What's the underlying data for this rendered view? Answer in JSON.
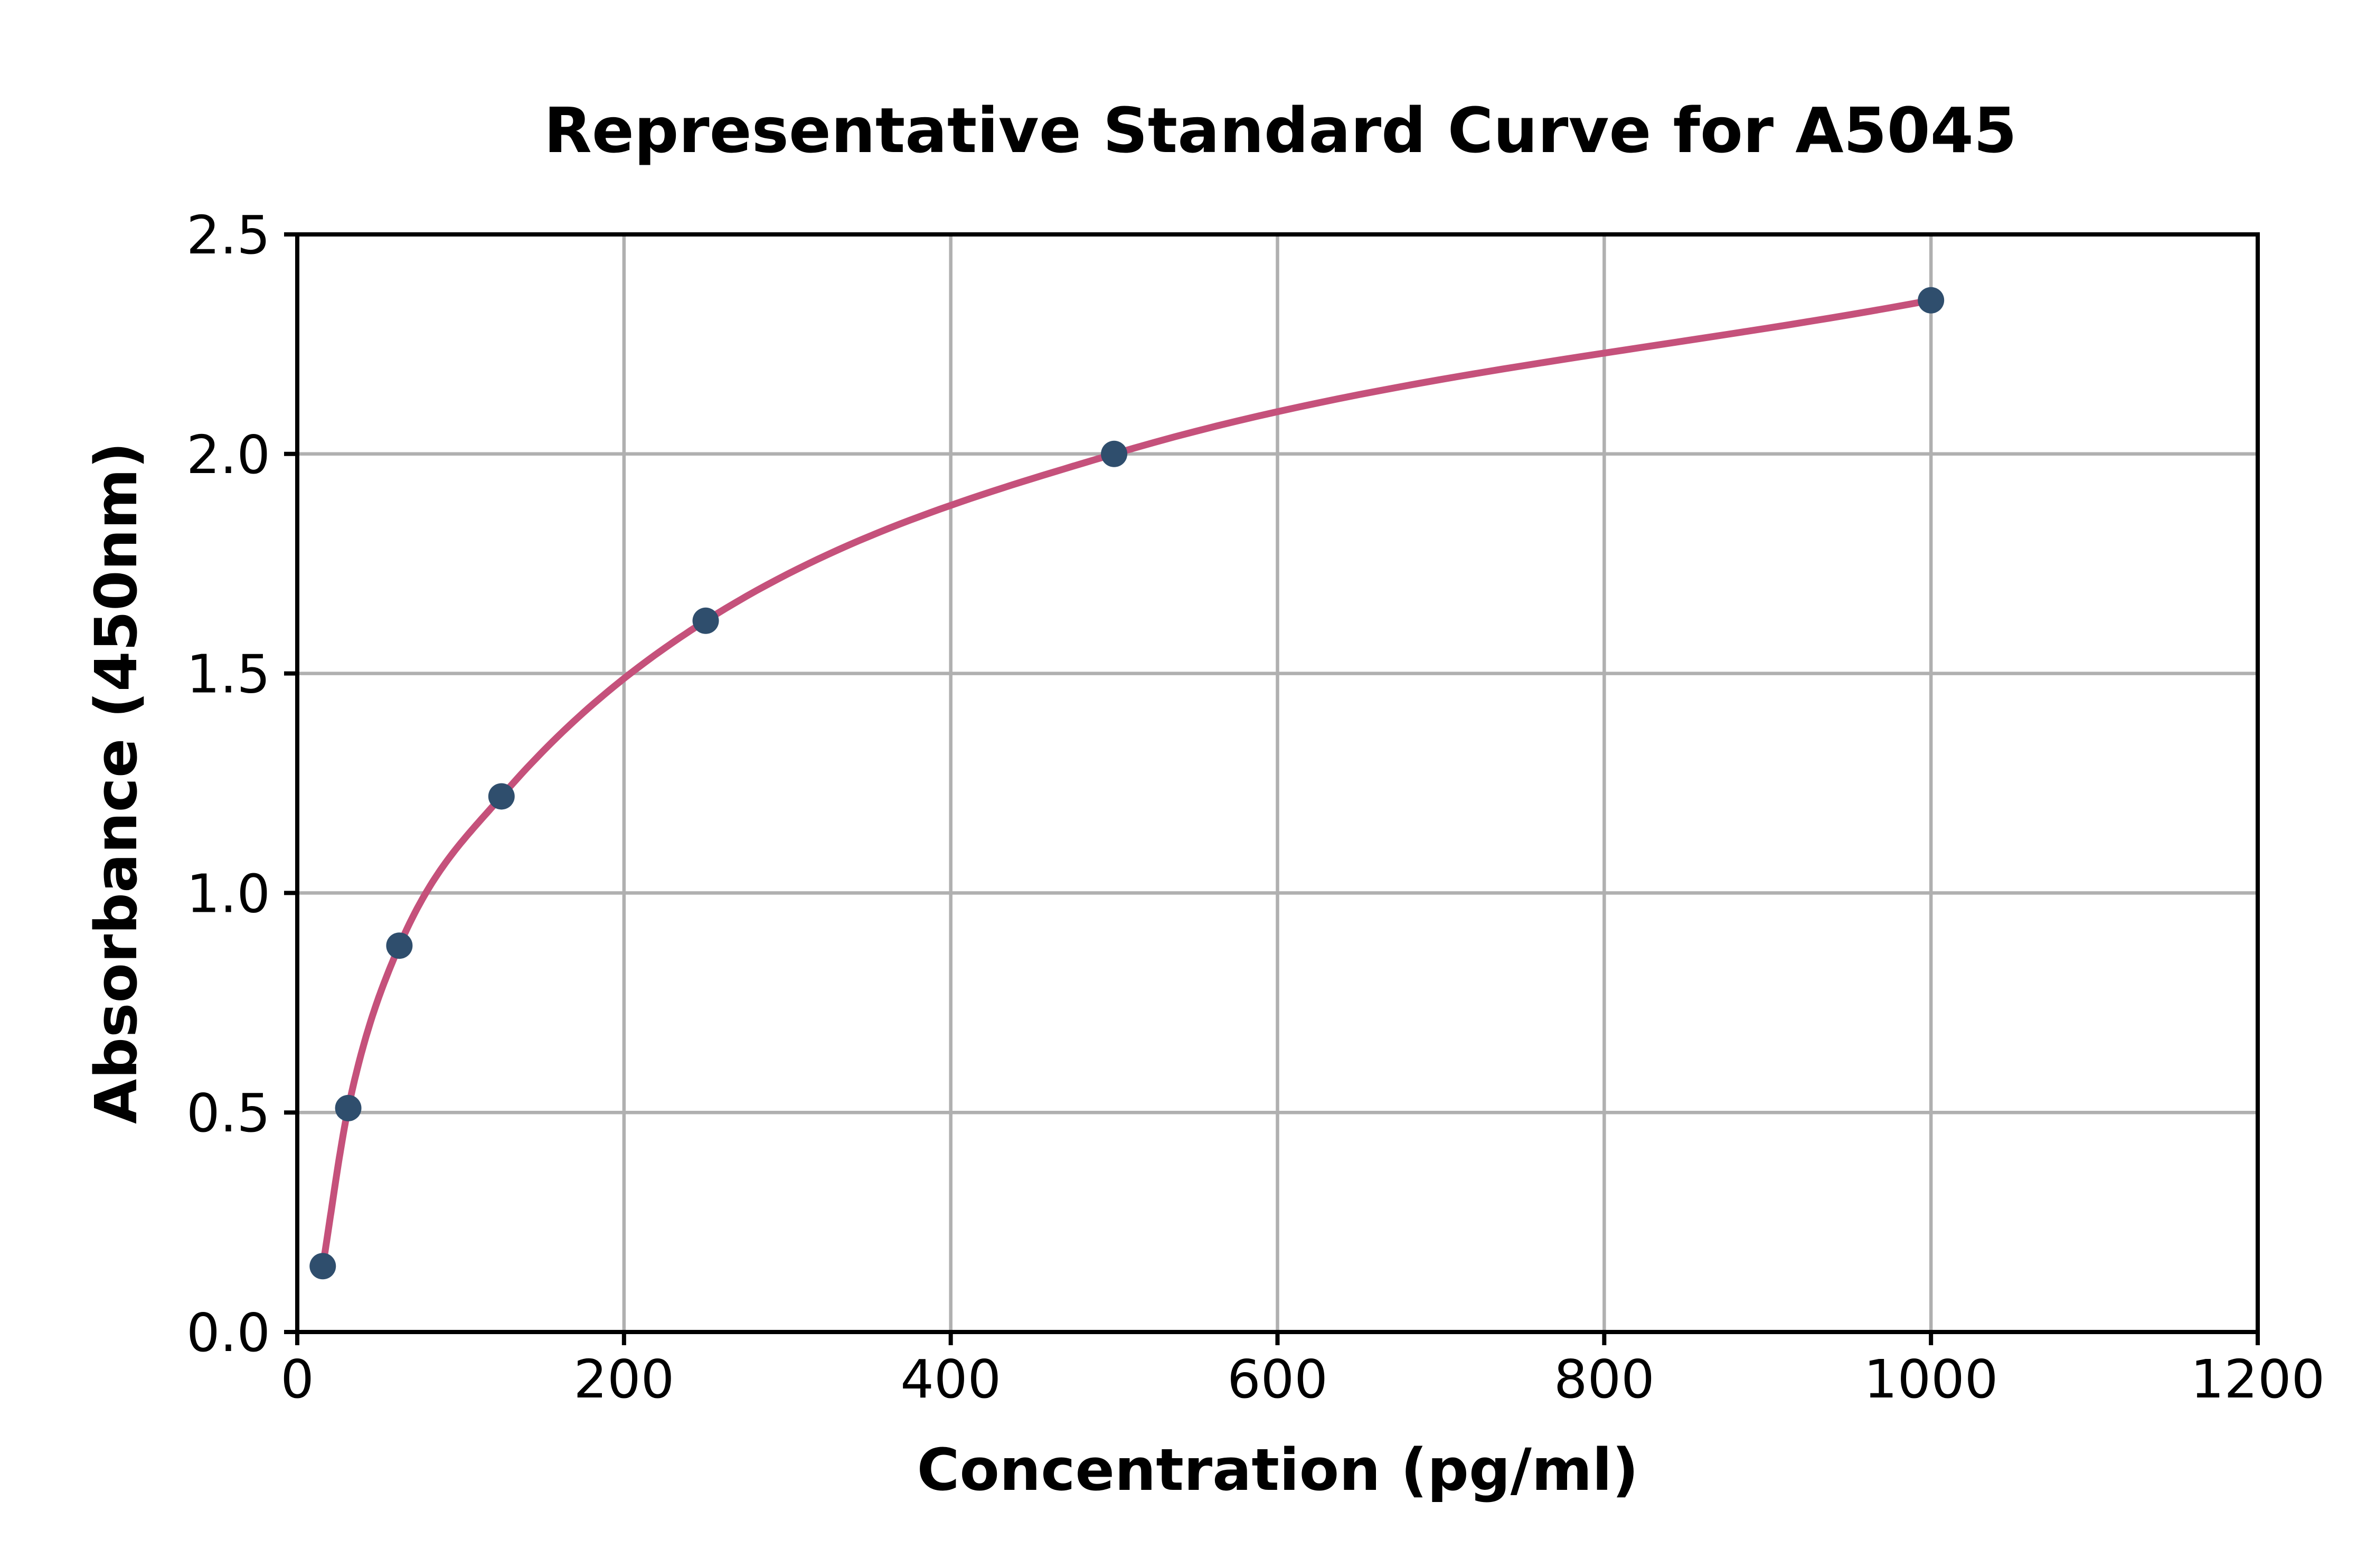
{
  "chart_data": {
    "type": "scatter",
    "title": "Representative Standard Curve for A5045",
    "xlabel": "Concentration (pg/ml)",
    "ylabel": "Absorbance (450nm)",
    "x": [
      15.6,
      31.2,
      62.5,
      125,
      250,
      500,
      1000
    ],
    "y": [
      0.15,
      0.51,
      0.88,
      1.22,
      1.62,
      2.0,
      2.35
    ],
    "xlim": [
      0,
      1200
    ],
    "ylim": [
      0,
      2.5
    ],
    "xticks": [
      0,
      200,
      400,
      600,
      800,
      1000,
      1200
    ],
    "xtick_labels": [
      "0",
      "200",
      "400",
      "600",
      "800",
      "1000",
      "1200"
    ],
    "yticks": [
      0,
      0.5,
      1.0,
      1.5,
      2.0,
      2.5
    ],
    "ytick_labels": [
      "0.0",
      "0.5",
      "1.0",
      "1.5",
      "2.0",
      "2.5"
    ],
    "grid": true,
    "legend": "none",
    "colors": {
      "line": "#c5517b",
      "marker": "#2f4e6d",
      "grid": "#b0b0b0",
      "spine": "#000000",
      "text": "#000000",
      "background": "#ffffff"
    }
  }
}
